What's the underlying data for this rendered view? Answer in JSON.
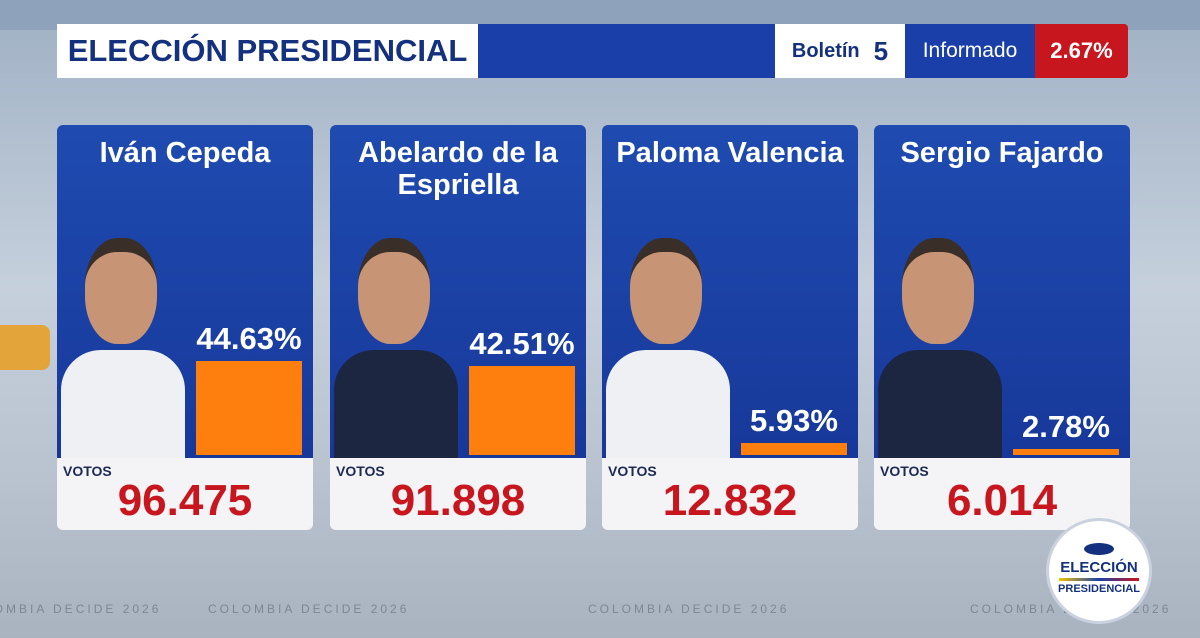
{
  "header": {
    "title": "ELECCIÓN PRESIDENCIAL",
    "bulletin_label": "Boletín",
    "bulletin_number": "5",
    "reported_label": "Informado",
    "reported_value": "2.67%"
  },
  "labels": {
    "votes": "VOTOS"
  },
  "candidates": [
    {
      "name": "Iván Cepeda",
      "percent": 44.63,
      "percent_label": "44.63%",
      "votes": "96.475"
    },
    {
      "name": "Abelardo de la Espriella",
      "percent": 42.51,
      "percent_label": "42.51%",
      "votes": "91.898"
    },
    {
      "name": "Paloma Valencia",
      "percent": 5.93,
      "percent_label": "5.93%",
      "votes": "12.832"
    },
    {
      "name": "Sergio Fajardo",
      "percent": 2.78,
      "percent_label": "2.78%",
      "votes": "6.014"
    }
  ],
  "footer": {
    "ticker": "COLOMBIA DECIDE 2026",
    "logo_top": "ELECCIÓN",
    "logo_bottom": "PRESIDENCIAL"
  }
}
